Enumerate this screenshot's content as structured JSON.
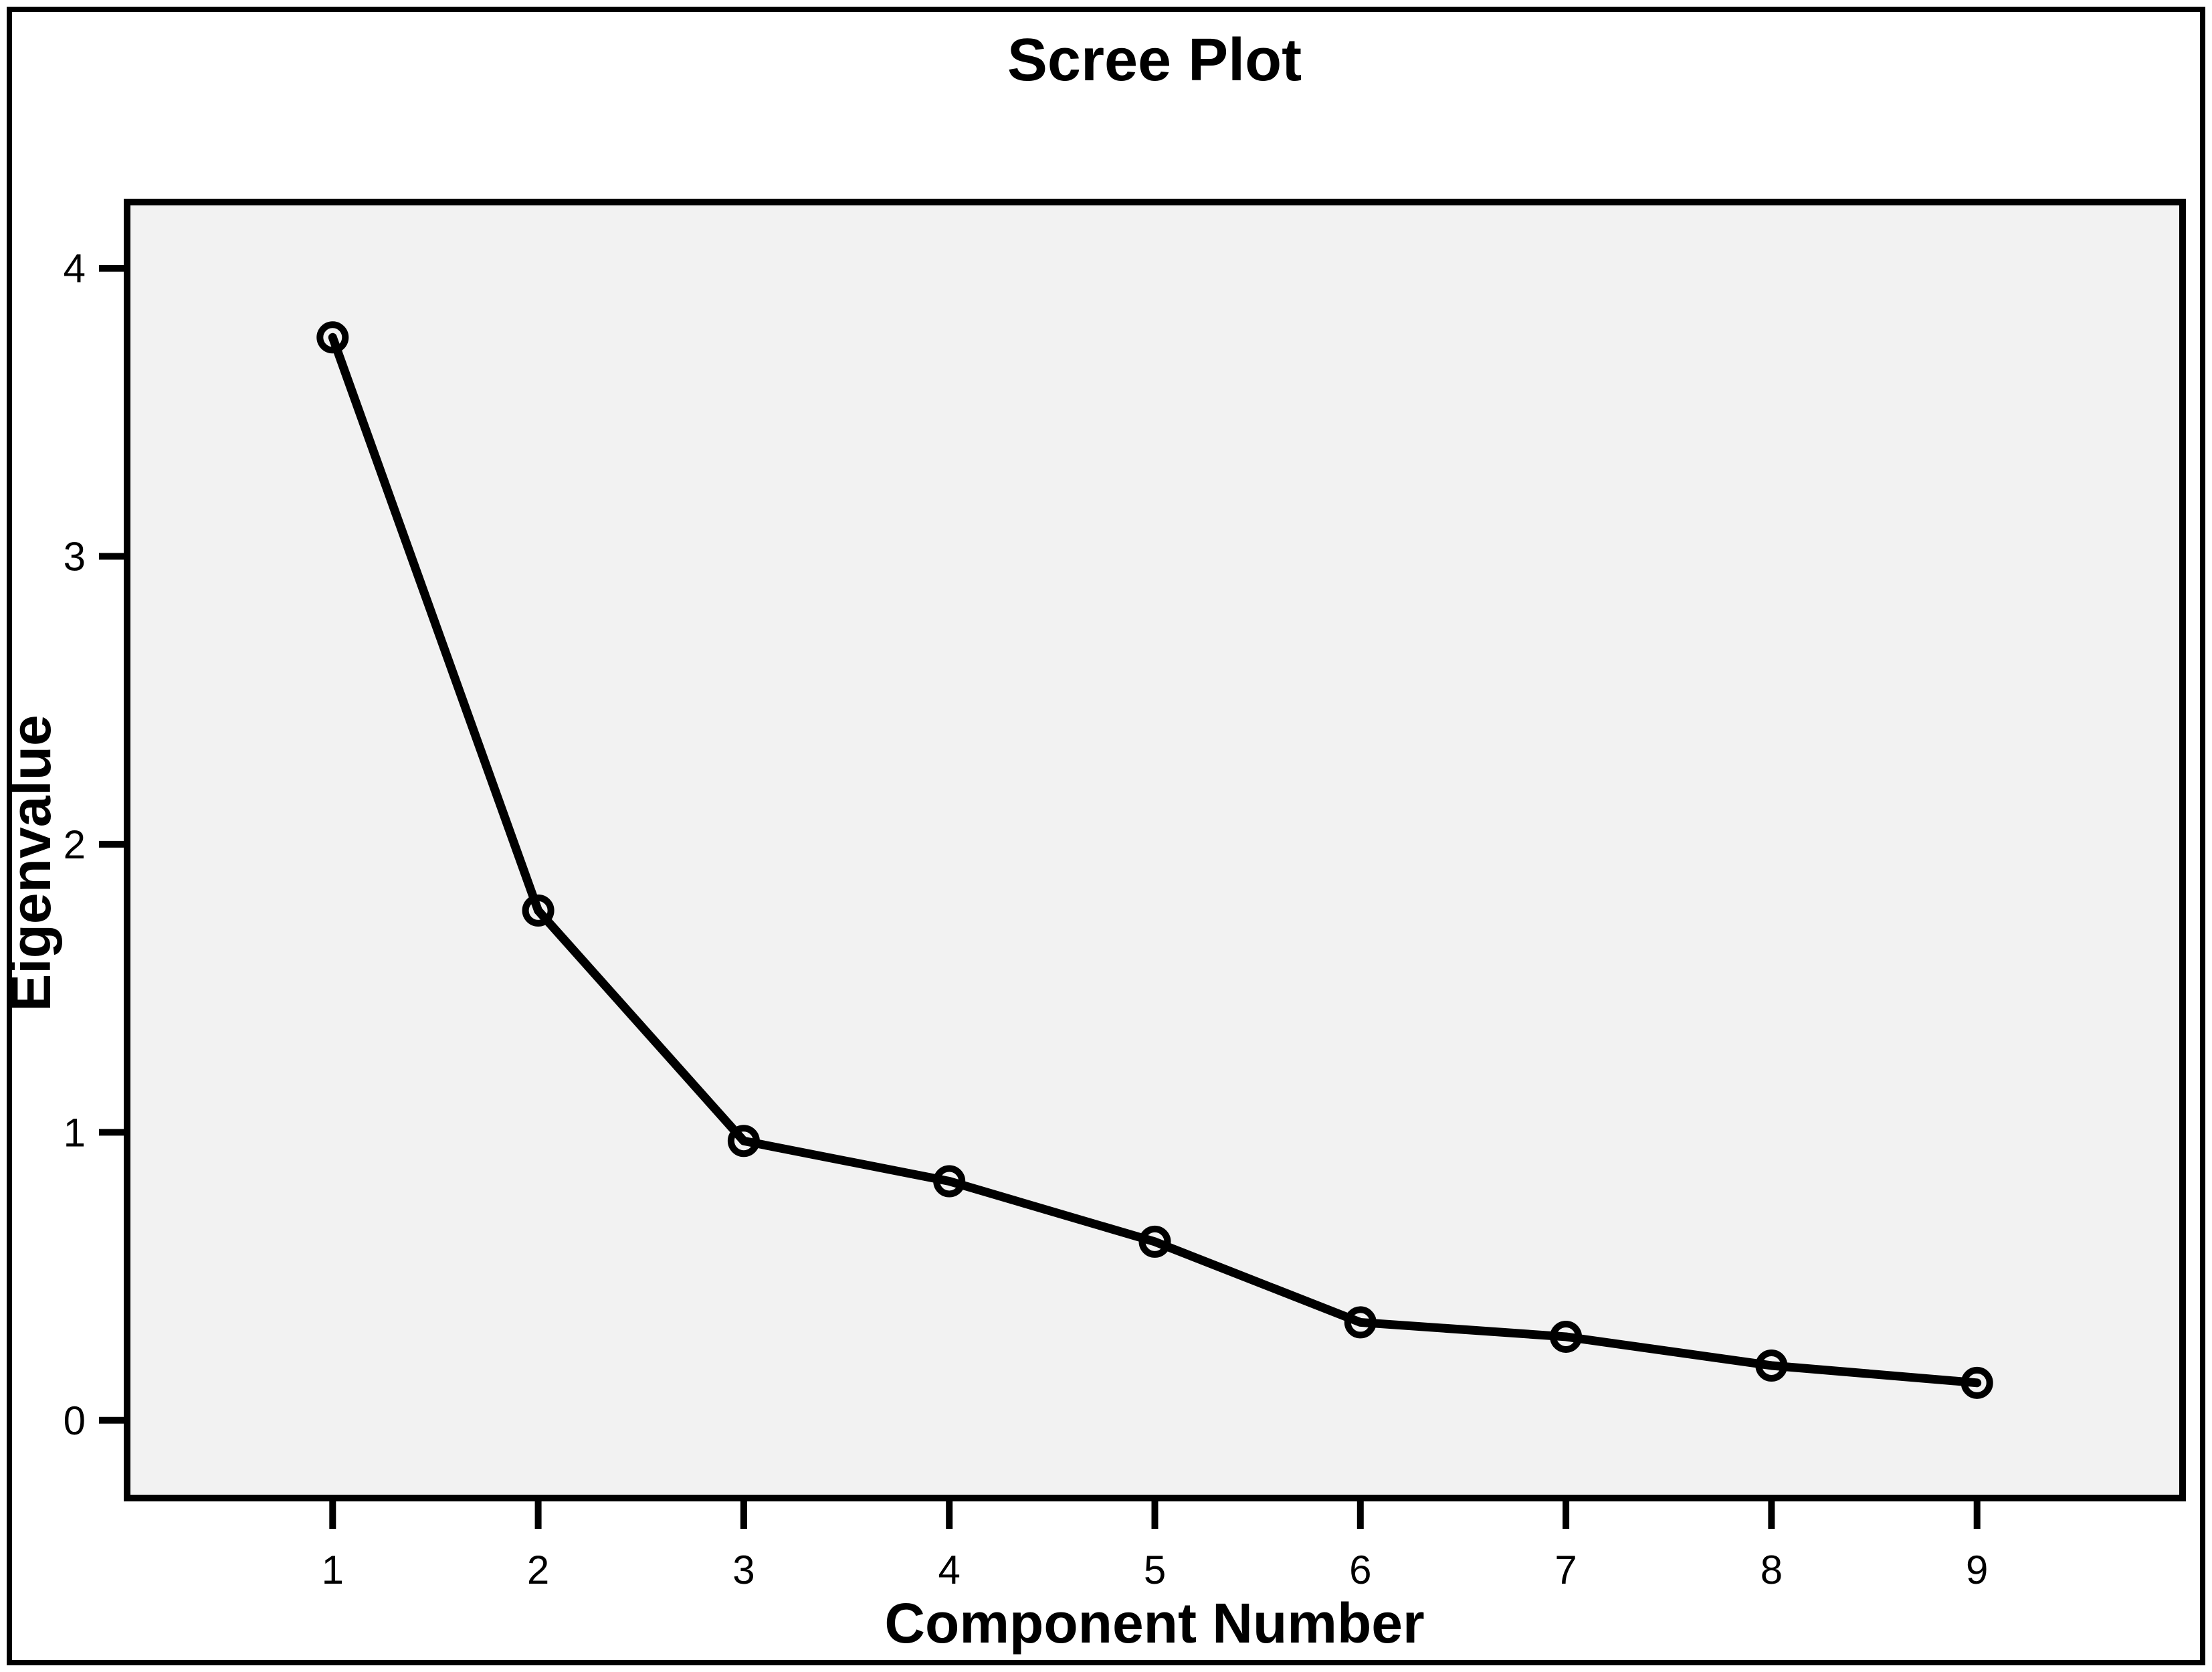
{
  "chart_data": {
    "type": "line",
    "title": "Scree Plot",
    "xlabel": "Component Number",
    "ylabel": "Eigenvalue",
    "x": [
      1,
      2,
      3,
      4,
      5,
      6,
      7,
      8,
      9
    ],
    "series": [
      {
        "name": "Eigenvalue",
        "values": [
          3.76,
          1.77,
          0.97,
          0.83,
          0.62,
          0.34,
          0.29,
          0.19,
          0.13
        ]
      }
    ],
    "xticks": [
      1,
      2,
      3,
      4,
      5,
      6,
      7,
      8,
      9
    ],
    "yticks": [
      0,
      1,
      2,
      3,
      4
    ],
    "xlim": [
      0,
      10
    ],
    "ylim": [
      -0.27,
      4.23
    ],
    "grid": false,
    "legend": false,
    "marker": "open-circle",
    "line_color": "#000000",
    "marker_color": "#000000",
    "plot_background": "#f2f2f2",
    "figure_background": "#ffffff",
    "frame_color": "#000000"
  }
}
